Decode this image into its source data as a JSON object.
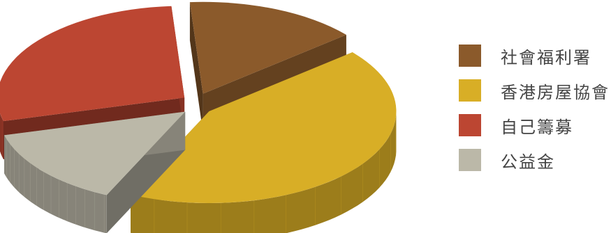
{
  "chart_data": {
    "type": "pie",
    "title": "",
    "style": "3d-exploded",
    "legend_position": "right",
    "series": [
      {
        "name": "社會福利署",
        "value": 15,
        "color": "#8B5A2B"
      },
      {
        "name": "香港房屋協會",
        "value": 43,
        "color": "#D8AE26"
      },
      {
        "name": "公益金",
        "value": 14,
        "color": "#BBB8A8"
      },
      {
        "name": "自己籌募",
        "value": 28,
        "color": "#BC4632"
      }
    ]
  },
  "legend": {
    "items": [
      {
        "label": "社會福利署",
        "color": "#8B5A2B"
      },
      {
        "label": "香港房屋協會",
        "color": "#D8AE26"
      },
      {
        "label": "自己籌募",
        "color": "#BC4632"
      },
      {
        "label": "公益金",
        "color": "#BBB8A8"
      }
    ]
  }
}
